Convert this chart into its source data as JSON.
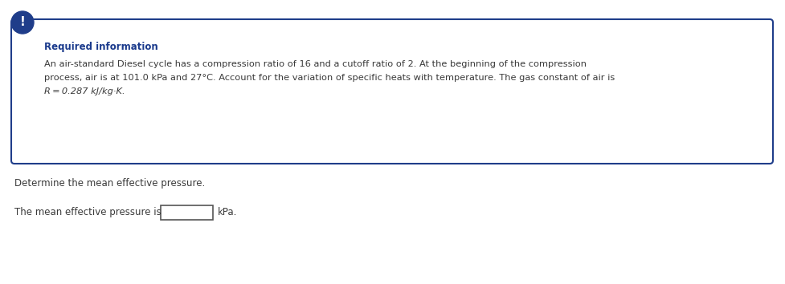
{
  "required_info_label": "Required information",
  "required_info_color": "#1a3a8c",
  "body_line1": "An air-standard Diesel cycle has a compression ratio of 16 and a cutoff ratio of 2. At the beginning of the compression",
  "body_line2": "process, air is at 101.0 kPa and 27°C. Account for the variation of specific heats with temperature. The gas constant of air is",
  "body_line3": "R = 0.287 kJ/kg·K.",
  "box_border_color": "#1f3d8a",
  "box_bg_color": "#ffffff",
  "icon_bg_color": "#1f3d8a",
  "icon_text": "!",
  "icon_text_color": "#ffffff",
  "question_line1": "Determine the mean effective pressure.",
  "question_line2": "The mean effective pressure is",
  "question_unit": "kPa.",
  "text_color": "#3a3a3a",
  "bg_color": "#ffffff"
}
